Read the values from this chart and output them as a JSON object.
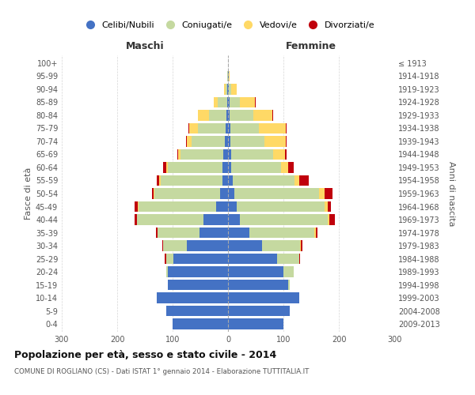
{
  "age_groups": [
    "0-4",
    "5-9",
    "10-14",
    "15-19",
    "20-24",
    "25-29",
    "30-34",
    "35-39",
    "40-44",
    "45-49",
    "50-54",
    "55-59",
    "60-64",
    "65-69",
    "70-74",
    "75-79",
    "80-84",
    "85-89",
    "90-94",
    "95-99",
    "100+"
  ],
  "birth_years": [
    "2009-2013",
    "2004-2008",
    "1999-2003",
    "1994-1998",
    "1989-1993",
    "1984-1988",
    "1979-1983",
    "1974-1978",
    "1969-1973",
    "1964-1968",
    "1959-1963",
    "1954-1958",
    "1949-1953",
    "1944-1948",
    "1939-1943",
    "1934-1938",
    "1929-1933",
    "1924-1928",
    "1919-1923",
    "1914-1918",
    "≤ 1913"
  ],
  "males": {
    "celibe": [
      100,
      112,
      128,
      108,
      108,
      98,
      75,
      52,
      45,
      22,
      15,
      10,
      10,
      8,
      6,
      4,
      3,
      2,
      1,
      0,
      0
    ],
    "coniugato": [
      0,
      0,
      0,
      1,
      4,
      14,
      42,
      75,
      120,
      140,
      118,
      112,
      98,
      78,
      60,
      50,
      32,
      16,
      4,
      1,
      0
    ],
    "vedovo": [
      0,
      0,
      0,
      0,
      0,
      0,
      0,
      0,
      0,
      1,
      1,
      2,
      3,
      4,
      8,
      16,
      20,
      8,
      2,
      0,
      0
    ],
    "divorziato": [
      0,
      0,
      0,
      0,
      0,
      2,
      2,
      3,
      3,
      5,
      3,
      4,
      6,
      2,
      2,
      1,
      0,
      0,
      0,
      0,
      0
    ]
  },
  "females": {
    "nubile": [
      100,
      112,
      128,
      108,
      100,
      88,
      62,
      38,
      22,
      16,
      12,
      8,
      6,
      6,
      4,
      4,
      3,
      3,
      1,
      1,
      0
    ],
    "coniugata": [
      0,
      0,
      1,
      4,
      18,
      40,
      68,
      118,
      158,
      158,
      152,
      112,
      90,
      75,
      62,
      52,
      42,
      18,
      4,
      0,
      0
    ],
    "vedova": [
      0,
      0,
      0,
      0,
      0,
      0,
      1,
      2,
      3,
      6,
      10,
      8,
      12,
      22,
      38,
      48,
      35,
      28,
      10,
      2,
      0
    ],
    "divorziata": [
      0,
      0,
      0,
      0,
      0,
      2,
      3,
      3,
      10,
      6,
      14,
      18,
      10,
      2,
      2,
      2,
      1,
      1,
      0,
      0,
      0
    ]
  },
  "colors": {
    "celibe": "#4472C4",
    "coniugato": "#c5d9a0",
    "vedovo": "#FFD966",
    "divorziato": "#C0000C"
  },
  "title": "Popolazione per età, sesso e stato civile - 2014",
  "subtitle": "COMUNE DI ROGLIANO (CS) - Dati ISTAT 1° gennaio 2014 - Elaborazione TUTTITALIA.IT",
  "xlabel_left": "Maschi",
  "xlabel_right": "Femmine",
  "ylabel_left": "Fasce di età",
  "ylabel_right": "Anni di nascita",
  "xlim": 300,
  "legend_labels": [
    "Celibi/Nubili",
    "Coniugati/e",
    "Vedovi/e",
    "Divorziati/e"
  ],
  "bg_color": "#ffffff",
  "grid_color": "#cccccc"
}
